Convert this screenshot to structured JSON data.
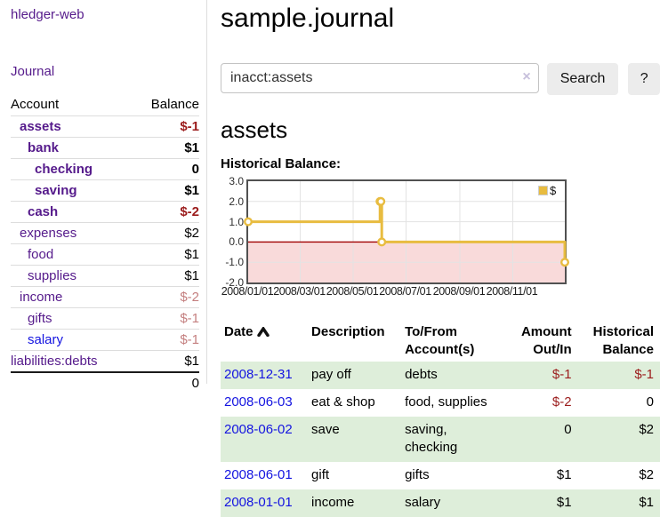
{
  "sidebar": {
    "brand": "hledger-web",
    "nav": {
      "journal_label": "Journal"
    },
    "accounts_table": {
      "account_header": "Account",
      "balance_header": "Balance",
      "rows": [
        {
          "name": "assets",
          "indent": 1,
          "bold": true,
          "balance": "$-1",
          "negative": "strong",
          "visited": true
        },
        {
          "name": "bank",
          "indent": 2,
          "bold": true,
          "balance": "$1",
          "negative": "none",
          "visited": true
        },
        {
          "name": "checking",
          "indent": 3,
          "bold": true,
          "balance": "0",
          "negative": "none",
          "visited": true
        },
        {
          "name": "saving",
          "indent": 3,
          "bold": true,
          "balance": "$1",
          "negative": "none",
          "visited": true
        },
        {
          "name": "cash",
          "indent": 2,
          "bold": true,
          "balance": "$-2",
          "negative": "strong",
          "visited": true
        },
        {
          "name": "expenses",
          "indent": 1,
          "bold": false,
          "balance": "$2",
          "negative": "none",
          "visited": true
        },
        {
          "name": "food",
          "indent": 2,
          "bold": false,
          "balance": "$1",
          "negative": "none",
          "visited": true
        },
        {
          "name": "supplies",
          "indent": 2,
          "bold": false,
          "balance": "$1",
          "negative": "none",
          "visited": true
        },
        {
          "name": "income",
          "indent": 1,
          "bold": false,
          "balance": "$-2",
          "negative": "muted",
          "visited": true
        },
        {
          "name": "gifts",
          "indent": 2,
          "bold": false,
          "balance": "$-1",
          "negative": "muted",
          "visited": true
        },
        {
          "name": "salary",
          "indent": 2,
          "bold": false,
          "balance": "$-1",
          "negative": "muted",
          "visited": false
        },
        {
          "name": "liabilities:debts",
          "indent": 0,
          "bold": false,
          "balance": "$1",
          "negative": "none",
          "visited": true
        }
      ],
      "total_balance": "0"
    }
  },
  "header": {
    "title": "sample.journal"
  },
  "search": {
    "value": "inacct:assets",
    "clear_icon": "×",
    "search_label": "Search",
    "help_label": "?"
  },
  "main": {
    "account_heading": "assets",
    "chart_label": "Historical Balance:"
  },
  "chart_data": {
    "type": "line",
    "step": true,
    "title": "Historical Balance",
    "series": [
      {
        "name": "$",
        "points": [
          [
            "2008-01-01",
            1
          ],
          [
            "2008-06-01",
            2
          ],
          [
            "2008-06-02",
            2
          ],
          [
            "2008-06-03",
            0
          ],
          [
            "2008-12-31",
            -1
          ]
        ]
      }
    ],
    "xrange": [
      "2008-01-01",
      "2008-12-31"
    ],
    "ylim": [
      -2,
      3
    ],
    "yticks": [
      3,
      2,
      1,
      0,
      -1,
      -2
    ],
    "ytick_labels": [
      "3.0",
      "2.0",
      "1.0",
      "0.0",
      "-1.0",
      "-2.0"
    ],
    "xticks": [
      "2008-01-01",
      "2008-03-01",
      "2008-05-01",
      "2008-07-01",
      "2008-09-01",
      "2008-11-01"
    ],
    "xtick_labels": [
      "2008/01/01",
      "2008/03/01",
      "2008/05/01",
      "2008/07/01",
      "2008/09/01",
      "2008/11/01"
    ],
    "legend": {
      "label": "$",
      "position": "top-right"
    },
    "negative_region_below": 0,
    "grid": true
  },
  "register": {
    "columns": [
      {
        "label": "Date",
        "align": "left",
        "sorted_asc": true
      },
      {
        "label": "Description",
        "align": "left"
      },
      {
        "label": "To/From\nAccount(s)",
        "align": "left"
      },
      {
        "label": "Amount\nOut/In",
        "align": "right"
      },
      {
        "label": "Historical\nBalance",
        "align": "right"
      }
    ],
    "rows": [
      {
        "date": "2008-12-31",
        "description": "pay off",
        "accounts": "debts",
        "amount": "$-1",
        "amount_negative": true,
        "balance": "$-1",
        "balance_negative": true
      },
      {
        "date": "2008-06-03",
        "description": "eat & shop",
        "accounts": "food, supplies",
        "amount": "$-2",
        "amount_negative": true,
        "balance": "0",
        "balance_negative": false
      },
      {
        "date": "2008-06-02",
        "description": "save",
        "accounts": "saving,\nchecking",
        "amount": "0",
        "amount_negative": false,
        "balance": "$2",
        "balance_negative": false
      },
      {
        "date": "2008-06-01",
        "description": "gift",
        "accounts": "gifts",
        "amount": "$1",
        "amount_negative": false,
        "balance": "$2",
        "balance_negative": false
      },
      {
        "date": "2008-01-01",
        "description": "income",
        "accounts": "salary",
        "amount": "$1",
        "amount_negative": false,
        "balance": "$1",
        "balance_negative": false
      }
    ]
  },
  "colors": {
    "link_visited": "#551a8b",
    "link_unvisited": "#1414e0",
    "negative_strong": "#9b1c1c",
    "negative_muted": "#c47f7f",
    "row_stripe_green": "#deeeda",
    "chart_line_gold": "#e8bc40",
    "chart_negative_area": "#f9dada",
    "chart_zero_line": "#a00000",
    "chart_border": "#515151",
    "chart_grid": "#e3e3e3"
  }
}
